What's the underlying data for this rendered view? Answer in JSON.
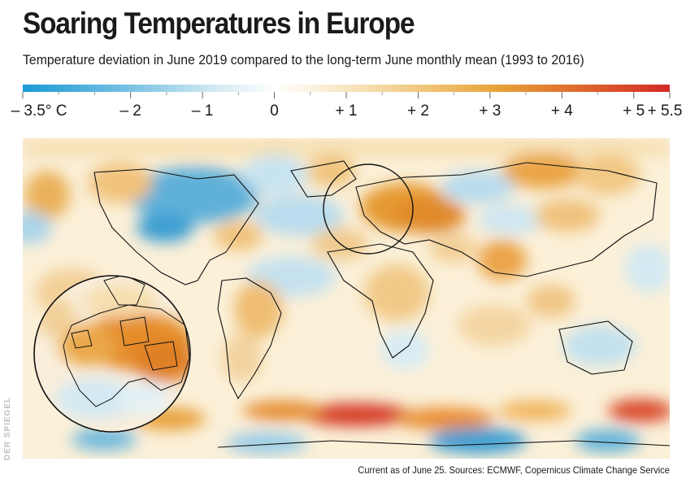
{
  "header": {
    "title": "Soaring Temperatures in Europe",
    "subtitle": "Temperature deviation in June 2019 compared to the long-term June monthly mean (1993 to 2016)"
  },
  "legend": {
    "ticks": [
      "– 3.5° C",
      "– 2",
      "– 1",
      "0",
      "+ 1",
      "+ 2",
      "+ 3",
      "+ 4",
      "+ 5",
      "+ 5.5"
    ],
    "tick_values": [
      -3.5,
      -2,
      -1,
      0,
      1,
      2,
      3,
      4,
      5,
      5.5
    ],
    "range": [
      -3.5,
      5.5
    ],
    "colors": {
      "cold_strong": "#1a9ad6",
      "cold_light": "#cfe8f2",
      "neutral": "#ffffff",
      "warm_light": "#f6e2b8",
      "warm_mid": "#eaa43a",
      "warm_strong": "#d9362b"
    }
  },
  "map": {
    "inset": "Europe magnified view",
    "land_outline_color": "#111111"
  },
  "footer": {
    "source": "Current as of June 25. Sources: ECMWF, Copernicus Climate Change Service",
    "brand": "DER SPIEGEL"
  }
}
